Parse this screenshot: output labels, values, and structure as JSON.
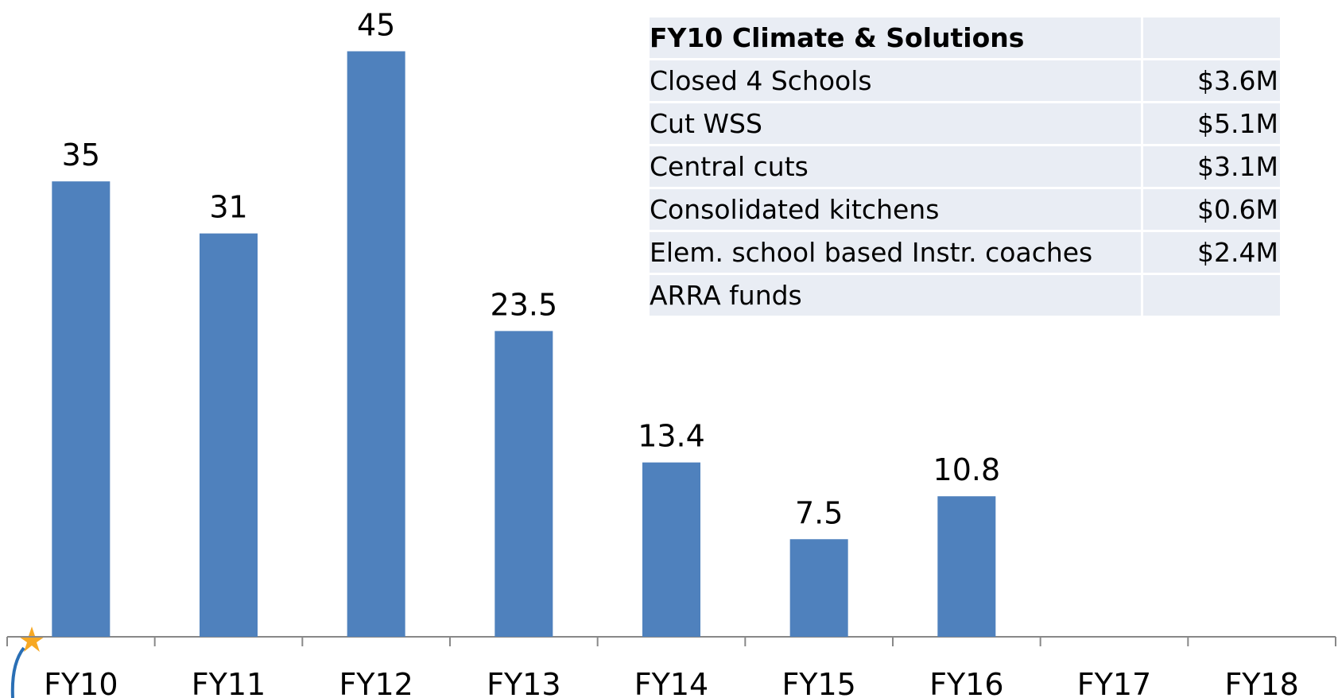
{
  "chart_data": {
    "type": "bar",
    "categories": [
      "FY10",
      "FY11",
      "FY12",
      "FY13",
      "FY14",
      "FY15",
      "FY16",
      "FY17",
      "FY18"
    ],
    "values": [
      35,
      31,
      45,
      23.5,
      13.4,
      7.5,
      10.8,
      null,
      null
    ],
    "color": "#4f81bd"
  },
  "table": {
    "title": "FY10 Climate & Solutions",
    "rows": [
      [
        "Closed 4 Schools",
        "$3.6M"
      ],
      [
        "Cut WSS",
        "$5.1M"
      ],
      [
        "Central cuts",
        "$3.1M"
      ],
      [
        "Consolidated kitchens",
        "$0.6M"
      ],
      [
        "Elem. school based Instr. coaches",
        "$2.4M"
      ],
      [
        "ARRA funds",
        null
      ]
    ]
  }
}
